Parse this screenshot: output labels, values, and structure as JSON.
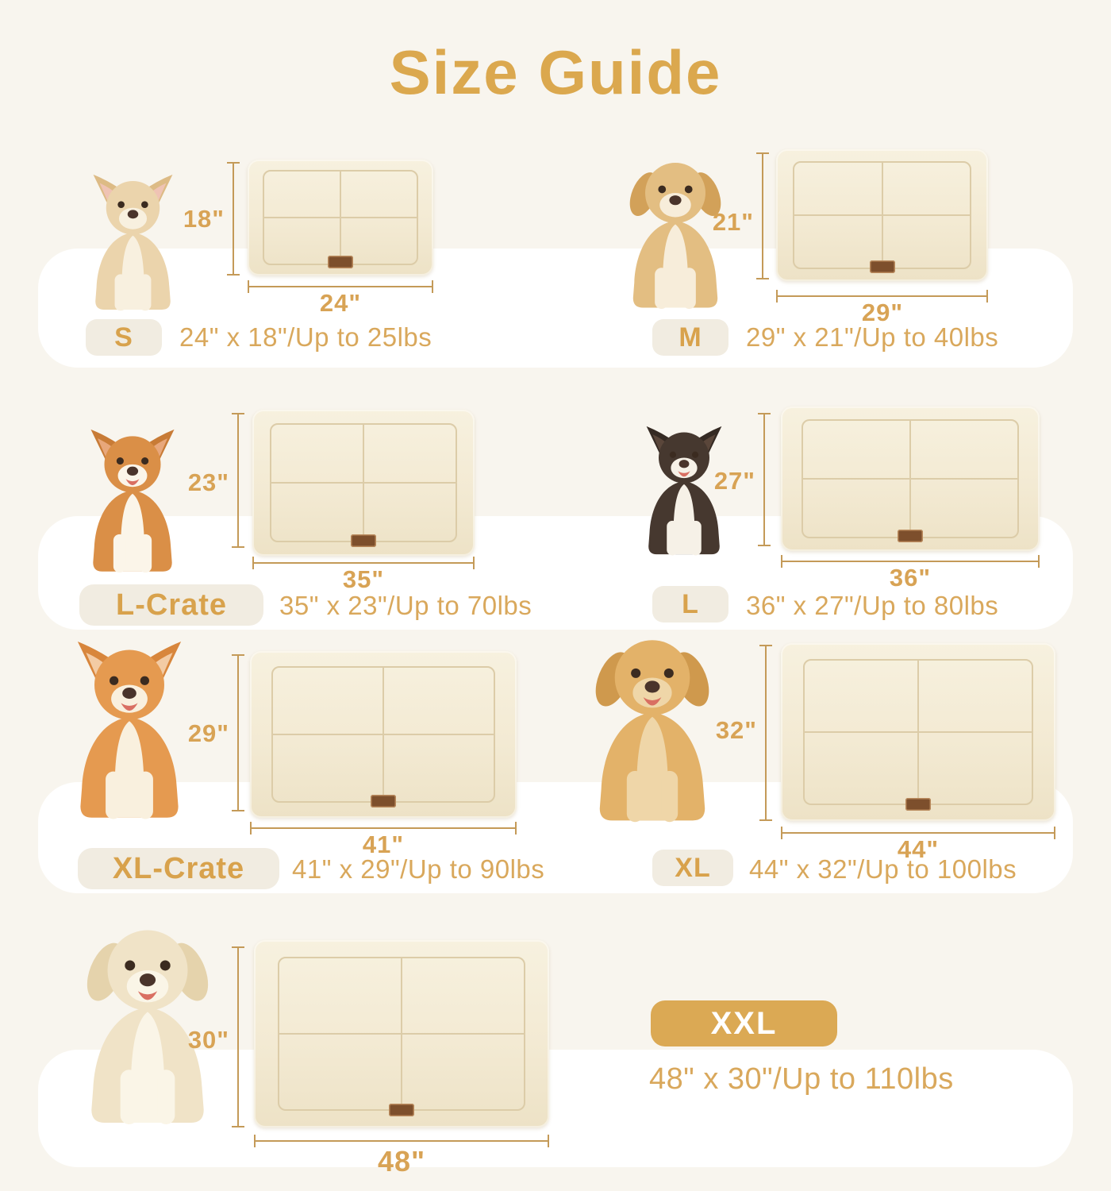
{
  "title": "Size Guide",
  "sizes": [
    {
      "code": "S",
      "spec": "24\" x 18\"/Up to 25lbs",
      "mat_width": "24\"",
      "mat_height": "18\"",
      "breed": "chihuahua"
    },
    {
      "code": "M",
      "spec": "29\" x 21\"/Up to 40lbs",
      "mat_width": "29\"",
      "mat_height": "21\"",
      "breed": "puppy"
    },
    {
      "code": "L-Crate",
      "spec": "35\" x 23\"/Up to 70lbs",
      "mat_width": "35\"",
      "mat_height": "23\"",
      "breed": "corgi"
    },
    {
      "code": "L",
      "spec": "36\" x 27\"/Up to 80lbs",
      "mat_width": "36\"",
      "mat_height": "27\"",
      "breed": "border-collie"
    },
    {
      "code": "XL-Crate",
      "spec": "41\" x 29\"/Up to 90lbs",
      "mat_width": "41\"",
      "mat_height": "29\"",
      "breed": "shiba-inu"
    },
    {
      "code": "XL",
      "spec": "44\" x 32\"/Up to 100lbs",
      "mat_width": "44\"",
      "mat_height": "32\"",
      "breed": "golden-retriever"
    },
    {
      "code": "XXL",
      "spec": "48\" x 30\"/Up to 110lbs",
      "mat_width": "48\"",
      "mat_height": "30\"",
      "breed": "labrador"
    }
  ],
  "colors": {
    "accent": "#DBA84E",
    "spec_text": "#D9A85C",
    "dim_line": "#C49A58",
    "band": "#FFFFFF",
    "page_bg": "#F8F5EE",
    "badge_bg": "#F1ECE1",
    "badge_text": "#D8A24C",
    "xxl_badge_bg": "#DBA954",
    "xxl_badge_text": "#FFFFFF",
    "mat": "#F4ECD9",
    "mat_seam": "#DCCCA8",
    "tag": "#7D4F2C"
  },
  "dog_styles": {
    "chihuahua": {
      "ears": "up",
      "mouth": "closed",
      "main": "#EBD4AC",
      "light": "#F8F0DF",
      "ear": "#DDBB85",
      "inner": "#EFC3B4"
    },
    "puppy": {
      "ears": "floppy",
      "mouth": "closed",
      "main": "#E3BE82",
      "light": "#F7EDDA",
      "ear": "#D2A159",
      "inner": "#E8C9A0"
    },
    "corgi": {
      "ears": "up",
      "mouth": "open",
      "main": "#DA8F47",
      "light": "#FBF5E9",
      "ear": "#C87B36",
      "inner": "#E8A77B"
    },
    "border-collie": {
      "ears": "up",
      "mouth": "open",
      "main": "#46382F",
      "light": "#F6F1E7",
      "ear": "#352A23",
      "inner": "#5A463A"
    },
    "shiba-inu": {
      "ears": "up",
      "mouth": "open",
      "main": "#E59A50",
      "light": "#F9F0DE",
      "ear": "#D8863C",
      "inner": "#F3CBA4"
    },
    "golden-retriever": {
      "ears": "floppy",
      "mouth": "open",
      "main": "#E3B269",
      "light": "#EFD6A8",
      "ear": "#CF994D",
      "inner": "#D8A75E"
    },
    "labrador": {
      "ears": "floppy",
      "mouth": "open",
      "main": "#F0E3C7",
      "light": "#FAF5E7",
      "ear": "#E5D3AC",
      "inner": "#EBDBB8"
    }
  }
}
